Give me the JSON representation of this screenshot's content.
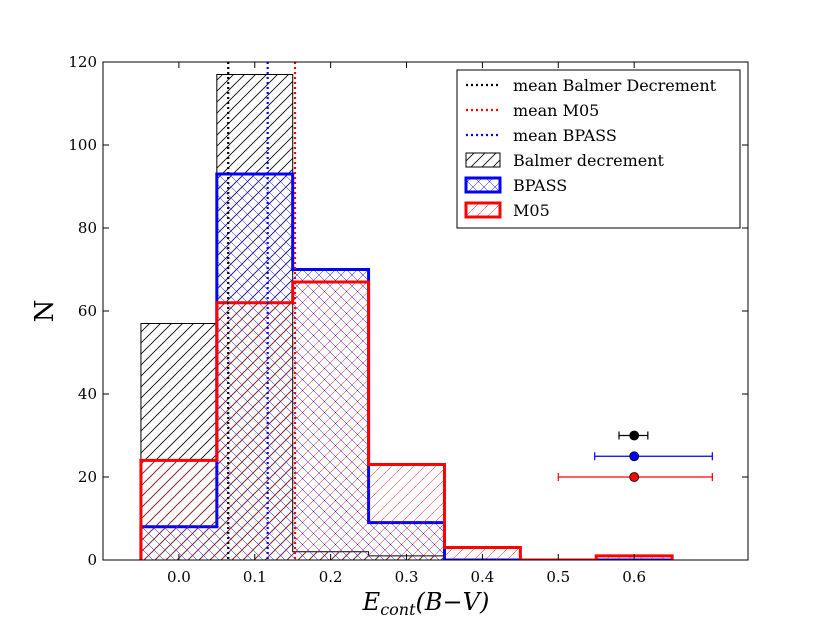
{
  "chart_data": {
    "type": "histogram",
    "xlabel_main": "E",
    "xlabel_sub": "cont",
    "xlabel_rest": "(B−V)",
    "ylabel": "N",
    "xlim": [
      -0.1,
      0.75
    ],
    "ylim": [
      0,
      120
    ],
    "xticks": [
      0.0,
      0.1,
      0.2,
      0.3,
      0.4,
      0.5,
      0.6
    ],
    "xtick_labels": [
      "0.0",
      "0.1",
      "0.2",
      "0.3",
      "0.4",
      "0.5",
      "0.6"
    ],
    "yticks": [
      0,
      20,
      40,
      60,
      80,
      100,
      120
    ],
    "ytick_labels": [
      "0",
      "20",
      "40",
      "60",
      "80",
      "100",
      "120"
    ],
    "bin_edges": [
      -0.05,
      0.05,
      0.15,
      0.25,
      0.35,
      0.45,
      0.55,
      0.65
    ],
    "series": [
      {
        "name": "Balmer decrement",
        "color": "#000000",
        "hatch": "//",
        "linewidth": 1,
        "values": [
          57,
          117,
          2,
          1,
          0,
          0,
          0
        ]
      },
      {
        "name": "BPASS",
        "color": "#0000ff",
        "hatch": "xx",
        "linewidth": 3,
        "values": [
          8,
          93,
          70,
          9,
          0,
          0,
          0
        ]
      },
      {
        "name": "M05",
        "color": "#ff0000",
        "hatch": "//",
        "linewidth": 3,
        "values": [
          24,
          62,
          67,
          23,
          3,
          0,
          1
        ]
      }
    ],
    "mean_lines": [
      {
        "name": "mean Balmer Decrement",
        "color": "#000000",
        "x": 0.065
      },
      {
        "name": "mean M05",
        "color": "#ff0000",
        "x": 0.153
      },
      {
        "name": "mean BPASS",
        "color": "#0000ff",
        "x": 0.117
      }
    ],
    "error_points": [
      {
        "series": "Balmer decrement",
        "color": "#000000",
        "x": 0.6,
        "y": 30,
        "xerr_low": 0.58,
        "xerr_high": 0.618
      },
      {
        "series": "BPASS",
        "color": "#0000ff",
        "x": 0.6,
        "y": 25,
        "xerr_low": 0.548,
        "xerr_high": 0.703
      },
      {
        "series": "M05",
        "color": "#ff0000",
        "x": 0.6,
        "y": 20,
        "xerr_low": 0.5,
        "xerr_high": 0.703
      }
    ],
    "legend": {
      "placement": "top-right",
      "entries": [
        {
          "label": "mean Balmer Decrement",
          "kind": "dotted",
          "color": "#000000"
        },
        {
          "label": "mean M05",
          "kind": "dotted",
          "color": "#ff0000"
        },
        {
          "label": "mean BPASS",
          "kind": "dotted",
          "color": "#0000ff"
        },
        {
          "label": "Balmer decrement",
          "kind": "patch",
          "color": "#000000",
          "hatch": "//",
          "linewidth": 1
        },
        {
          "label": "BPASS",
          "kind": "patch",
          "color": "#0000ff",
          "hatch": "xx",
          "linewidth": 3
        },
        {
          "label": "M05",
          "kind": "patch",
          "color": "#ff0000",
          "hatch": "//",
          "linewidth": 3
        }
      ]
    }
  }
}
